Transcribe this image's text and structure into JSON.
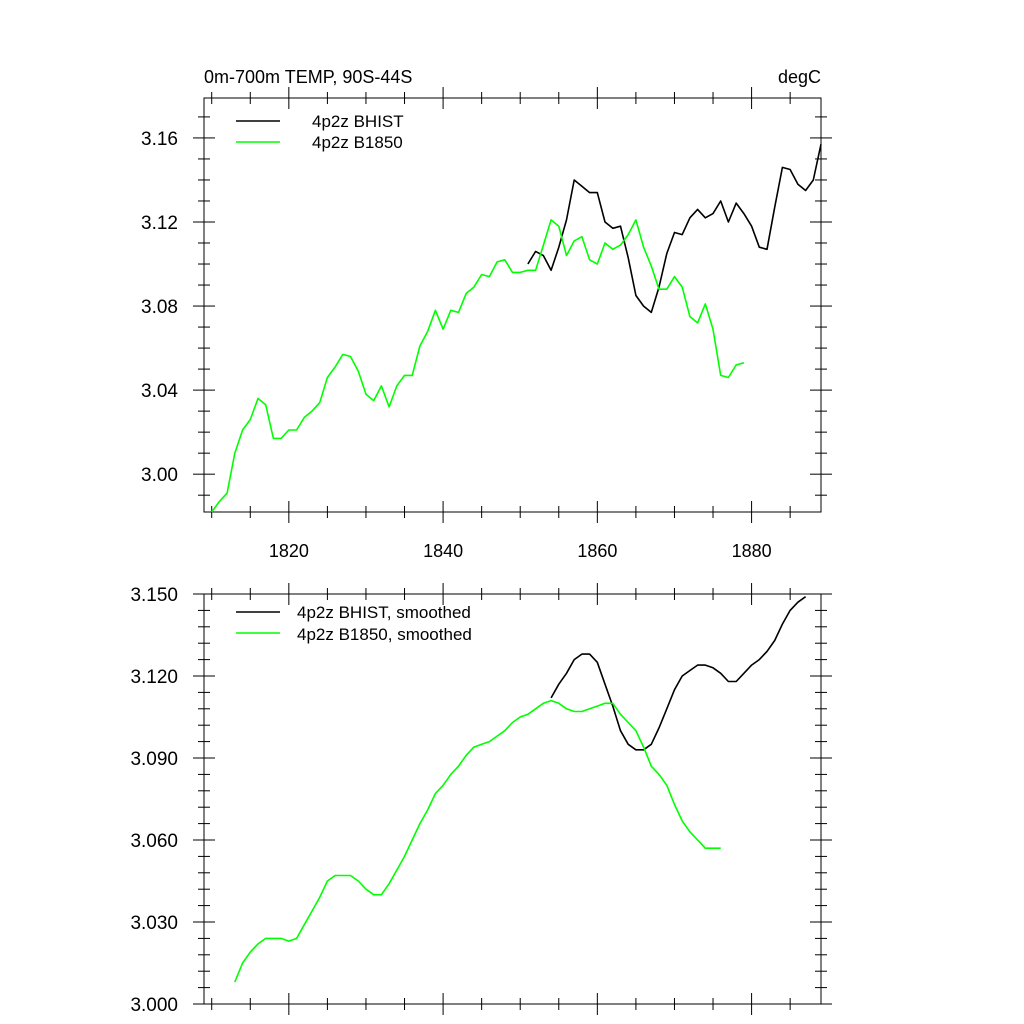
{
  "colors": {
    "bhist": "#000000",
    "b1850": "#00ff00"
  },
  "chart_data": [
    {
      "type": "line",
      "title_left": "0m-700m TEMP, 90S-44S",
      "title_right": "degC",
      "xlim": [
        1809,
        1889
      ],
      "ylim": [
        2.982,
        3.179
      ],
      "xticks": [
        1820,
        1840,
        1860,
        1880
      ],
      "xtick_labels": [
        "1820",
        "1840",
        "1860",
        "1880"
      ],
      "yticks": [
        3.0,
        3.04,
        3.08,
        3.12,
        3.16
      ],
      "ytick_labels": [
        "3.00",
        "3.04",
        "3.08",
        "3.12",
        "3.16"
      ],
      "legend": "top-left",
      "series": [
        {
          "name": "4p2z BHIST",
          "color_key": "bhist",
          "x": [
            1851,
            1852,
            1853,
            1854,
            1855,
            1856,
            1857,
            1858,
            1859,
            1860,
            1861,
            1862,
            1863,
            1864,
            1865,
            1866,
            1867,
            1868,
            1869,
            1870,
            1871,
            1872,
            1873,
            1874,
            1875,
            1876,
            1877,
            1878,
            1879,
            1880,
            1881,
            1882,
            1883,
            1884,
            1885,
            1886,
            1887,
            1888,
            1889
          ],
          "y": [
            3.1,
            3.106,
            3.104,
            3.097,
            3.108,
            3.121,
            3.14,
            3.137,
            3.134,
            3.134,
            3.12,
            3.117,
            3.118,
            3.103,
            3.085,
            3.08,
            3.077,
            3.089,
            3.105,
            3.115,
            3.114,
            3.122,
            3.126,
            3.122,
            3.124,
            3.13,
            3.12,
            3.129,
            3.124,
            3.118,
            3.108,
            3.107,
            3.127,
            3.146,
            3.145,
            3.138,
            3.135,
            3.14,
            3.157
          ]
        },
        {
          "name": "4p2z B1850",
          "color_key": "b1850",
          "x": [
            1810,
            1811,
            1812,
            1813,
            1814,
            1815,
            1816,
            1817,
            1818,
            1819,
            1820,
            1821,
            1822,
            1823,
            1824,
            1825,
            1826,
            1827,
            1828,
            1829,
            1830,
            1831,
            1832,
            1833,
            1834,
            1835,
            1836,
            1837,
            1838,
            1839,
            1840,
            1841,
            1842,
            1843,
            1844,
            1845,
            1846,
            1847,
            1848,
            1849,
            1850,
            1851,
            1852,
            1853,
            1854,
            1855,
            1856,
            1857,
            1858,
            1859,
            1860,
            1861,
            1862,
            1863,
            1864,
            1865,
            1866,
            1867,
            1868,
            1869,
            1870,
            1871,
            1872,
            1873,
            1874,
            1875,
            1876,
            1877,
            1878,
            1879
          ],
          "y": [
            2.982,
            2.987,
            2.991,
            3.01,
            3.021,
            3.026,
            3.036,
            3.033,
            3.017,
            3.017,
            3.021,
            3.021,
            3.027,
            3.03,
            3.034,
            3.046,
            3.051,
            3.057,
            3.056,
            3.049,
            3.038,
            3.035,
            3.042,
            3.032,
            3.042,
            3.047,
            3.047,
            3.061,
            3.068,
            3.078,
            3.069,
            3.078,
            3.077,
            3.086,
            3.089,
            3.095,
            3.094,
            3.101,
            3.102,
            3.096,
            3.096,
            3.097,
            3.097,
            3.109,
            3.121,
            3.118,
            3.104,
            3.111,
            3.113,
            3.102,
            3.1,
            3.11,
            3.107,
            3.109,
            3.114,
            3.121,
            3.108,
            3.099,
            3.088,
            3.088,
            3.094,
            3.089,
            3.075,
            3.072,
            3.081,
            3.069,
            3.047,
            3.046,
            3.052,
            3.053
          ]
        }
      ]
    },
    {
      "type": "line",
      "xlim": [
        1809,
        1889
      ],
      "ylim": [
        3.0,
        3.15
      ],
      "xticks": [
        1820,
        1840,
        1860,
        1880
      ],
      "yticks": [
        3.0,
        3.03,
        3.06,
        3.09,
        3.12,
        3.15
      ],
      "ytick_labels": [
        "3.000",
        "3.030",
        "3.060",
        "3.090",
        "3.120",
        "3.150"
      ],
      "legend": "top-left",
      "series": [
        {
          "name": "4p2z BHIST, smoothed",
          "color_key": "bhist",
          "x": [
            1854,
            1855,
            1856,
            1857,
            1858,
            1859,
            1860,
            1861,
            1862,
            1863,
            1864,
            1865,
            1866,
            1867,
            1868,
            1869,
            1870,
            1871,
            1872,
            1873,
            1874,
            1875,
            1876,
            1877,
            1878,
            1879,
            1880,
            1881,
            1882,
            1883,
            1884,
            1885,
            1886,
            1887
          ],
          "y": [
            3.112,
            3.117,
            3.121,
            3.126,
            3.128,
            3.128,
            3.125,
            3.117,
            3.109,
            3.1,
            3.095,
            3.093,
            3.093,
            3.095,
            3.101,
            3.108,
            3.115,
            3.12,
            3.122,
            3.124,
            3.124,
            3.123,
            3.121,
            3.118,
            3.118,
            3.121,
            3.124,
            3.126,
            3.129,
            3.133,
            3.139,
            3.144,
            3.147,
            3.149
          ]
        },
        {
          "name": "4p2z B1850, smoothed",
          "color_key": "b1850",
          "x": [
            1813,
            1814,
            1815,
            1816,
            1817,
            1818,
            1819,
            1820,
            1821,
            1822,
            1823,
            1824,
            1825,
            1826,
            1827,
            1828,
            1829,
            1830,
            1831,
            1832,
            1833,
            1834,
            1835,
            1836,
            1837,
            1838,
            1839,
            1840,
            1841,
            1842,
            1843,
            1844,
            1845,
            1846,
            1847,
            1848,
            1849,
            1850,
            1851,
            1852,
            1853,
            1854,
            1855,
            1856,
            1857,
            1858,
            1859,
            1860,
            1861,
            1862,
            1863,
            1864,
            1865,
            1866,
            1867,
            1868,
            1869,
            1870,
            1871,
            1872,
            1873,
            1874,
            1875,
            1876
          ],
          "y": [
            3.008,
            3.015,
            3.019,
            3.022,
            3.024,
            3.024,
            3.024,
            3.023,
            3.024,
            3.029,
            3.034,
            3.039,
            3.045,
            3.047,
            3.047,
            3.047,
            3.045,
            3.042,
            3.04,
            3.04,
            3.044,
            3.049,
            3.054,
            3.06,
            3.066,
            3.071,
            3.077,
            3.08,
            3.084,
            3.087,
            3.091,
            3.094,
            3.095,
            3.096,
            3.098,
            3.1,
            3.103,
            3.105,
            3.106,
            3.108,
            3.11,
            3.111,
            3.11,
            3.108,
            3.107,
            3.107,
            3.108,
            3.109,
            3.11,
            3.11,
            3.106,
            3.103,
            3.1,
            3.094,
            3.087,
            3.084,
            3.08,
            3.073,
            3.067,
            3.063,
            3.06,
            3.057,
            3.057,
            3.057
          ]
        }
      ]
    }
  ]
}
